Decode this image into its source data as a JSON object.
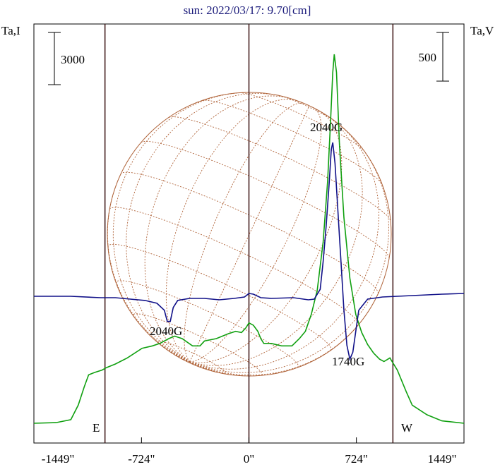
{
  "chart_data": {
    "type": "line",
    "title": "sun: 2022/03/17: 9.70[cm]",
    "ylabel_left": "Ta,I",
    "ylabel_right": "Ta,V",
    "scale_left": "3000",
    "scale_right": "500",
    "xlim": [
      -1449,
      1449
    ],
    "x_ticks": [
      "-1449\"",
      "-724\"",
      "0\"",
      "724\"",
      "1449\""
    ],
    "limb_markers": {
      "east": "E",
      "west": "W",
      "x": [
        -970,
        970
      ]
    },
    "annotations": [
      {
        "text": "2040G",
        "x": 560,
        "series": "V"
      },
      {
        "text": "2040G",
        "x": -530,
        "series": "V"
      },
      {
        "text": "1740G",
        "x": 700,
        "series": "V"
      }
    ],
    "series": [
      {
        "key": "I",
        "color": "#10a010",
        "points": [
          [
            -1449,
            0
          ],
          [
            -1300,
            5
          ],
          [
            -1200,
            30
          ],
          [
            -1150,
            150
          ],
          [
            -1110,
            300
          ],
          [
            -1080,
            400
          ],
          [
            -1040,
            420
          ],
          [
            -990,
            440
          ],
          [
            -960,
            460
          ],
          [
            -900,
            490
          ],
          [
            -820,
            540
          ],
          [
            -720,
            620
          ],
          [
            -650,
            640
          ],
          [
            -600,
            660
          ],
          [
            -540,
            700
          ],
          [
            -500,
            720
          ],
          [
            -450,
            700
          ],
          [
            -380,
            640
          ],
          [
            -330,
            640
          ],
          [
            -300,
            680
          ],
          [
            -220,
            700
          ],
          [
            -140,
            740
          ],
          [
            -90,
            760
          ],
          [
            -50,
            750
          ],
          [
            -20,
            790
          ],
          [
            0,
            830
          ],
          [
            30,
            810
          ],
          [
            60,
            760
          ],
          [
            80,
            700
          ],
          [
            100,
            660
          ],
          [
            150,
            660
          ],
          [
            220,
            640
          ],
          [
            290,
            640
          ],
          [
            340,
            700
          ],
          [
            380,
            760
          ],
          [
            420,
            900
          ],
          [
            460,
            1100
          ],
          [
            500,
            1500
          ],
          [
            530,
            2000
          ],
          [
            550,
            2500
          ],
          [
            565,
            2900
          ],
          [
            575,
            3050
          ],
          [
            590,
            2900
          ],
          [
            610,
            2300
          ],
          [
            640,
            1700
          ],
          [
            680,
            1200
          ],
          [
            720,
            900
          ],
          [
            760,
            750
          ],
          [
            800,
            650
          ],
          [
            840,
            580
          ],
          [
            880,
            530
          ],
          [
            910,
            510
          ],
          [
            950,
            540
          ],
          [
            1000,
            440
          ],
          [
            1060,
            260
          ],
          [
            1100,
            150
          ],
          [
            1200,
            70
          ],
          [
            1300,
            20
          ],
          [
            1449,
            0
          ]
        ]
      },
      {
        "key": "V",
        "color": "#101088",
        "points": [
          [
            -1449,
            0
          ],
          [
            -1200,
            0
          ],
          [
            -1000,
            -10
          ],
          [
            -900,
            -10
          ],
          [
            -800,
            -20
          ],
          [
            -700,
            -30
          ],
          [
            -620,
            -50
          ],
          [
            -570,
            -100
          ],
          [
            -550,
            -180
          ],
          [
            -530,
            -180
          ],
          [
            -510,
            -80
          ],
          [
            -480,
            -30
          ],
          [
            -400,
            -15
          ],
          [
            -300,
            -15
          ],
          [
            -200,
            -25
          ],
          [
            -100,
            -15
          ],
          [
            -30,
            -5
          ],
          [
            0,
            20
          ],
          [
            30,
            15
          ],
          [
            80,
            -10
          ],
          [
            150,
            -15
          ],
          [
            300,
            -10
          ],
          [
            400,
            -25
          ],
          [
            440,
            -20
          ],
          [
            480,
            50
          ],
          [
            500,
            250
          ],
          [
            520,
            500
          ],
          [
            540,
            800
          ],
          [
            555,
            1050
          ],
          [
            565,
            1100
          ],
          [
            580,
            950
          ],
          [
            600,
            600
          ],
          [
            620,
            250
          ],
          [
            640,
            -100
          ],
          [
            660,
            -350
          ],
          [
            680,
            -450
          ],
          [
            700,
            -400
          ],
          [
            720,
            -250
          ],
          [
            740,
            -100
          ],
          [
            800,
            -20
          ],
          [
            900,
            -5
          ],
          [
            1000,
            0
          ],
          [
            1100,
            5
          ],
          [
            1200,
            10
          ],
          [
            1300,
            15
          ],
          [
            1449,
            20
          ]
        ]
      }
    ]
  }
}
